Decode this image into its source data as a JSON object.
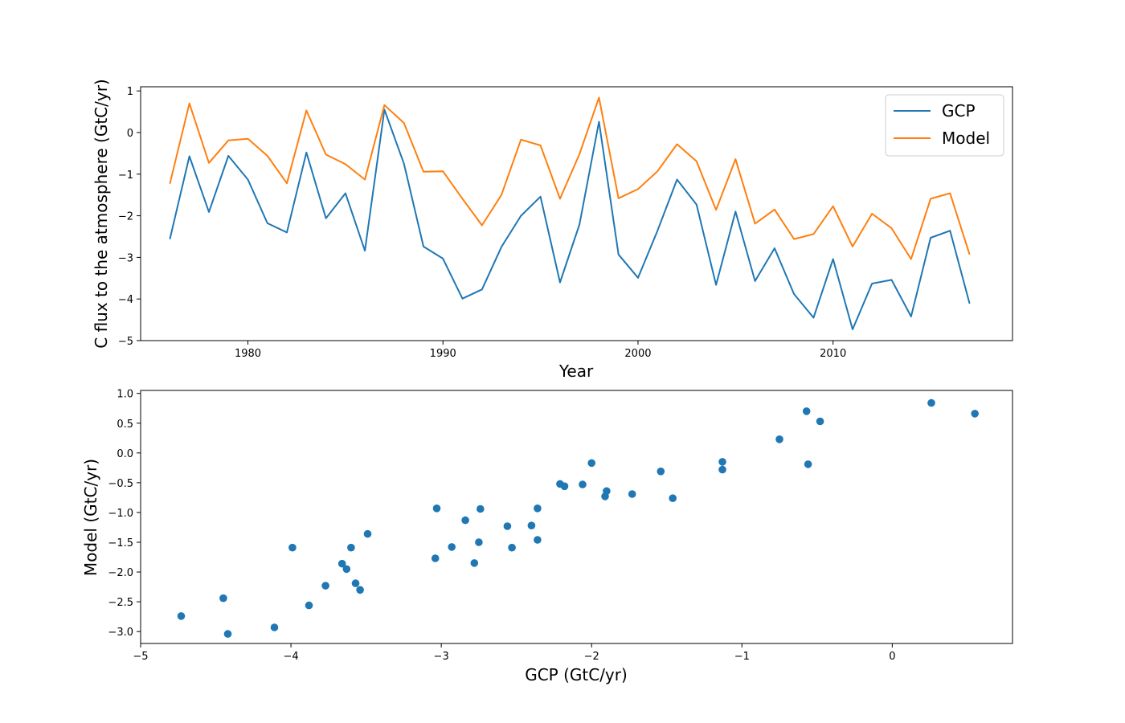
{
  "chart_data": [
    {
      "type": "line",
      "title": "",
      "xlabel": "Year",
      "ylabel": "C flux to the atmosphere (GtC/yr)",
      "xlim": [
        1974.5,
        2019.2
      ],
      "ylim": [
        -5.0,
        1.1
      ],
      "xticks": [
        1980,
        1990,
        2000,
        2010
      ],
      "xtick_labels": [
        "1980",
        "1990",
        "2000",
        "2010"
      ],
      "yticks": [
        1,
        0,
        -1,
        -2,
        -3,
        -4,
        -5
      ],
      "ytick_labels": [
        "1",
        "0",
        "−1",
        "−2",
        "−3",
        "−4",
        "−5"
      ],
      "grid": false,
      "legend": "upper right",
      "x": [
        1976,
        1977,
        1978,
        1979,
        1980,
        1981,
        1982,
        1983,
        1984,
        1985,
        1986,
        1987,
        1988,
        1989,
        1990,
        1991,
        1992,
        1993,
        1994,
        1995,
        1996,
        1997,
        1998,
        1999,
        2000,
        2001,
        2002,
        2003,
        2004,
        2005,
        2006,
        2007,
        2008,
        2009,
        2010,
        2011,
        2012,
        2013,
        2014,
        2015,
        2016,
        2017
      ],
      "series": [
        {
          "name": "GCP",
          "color": "#1f77b4",
          "values": [
            -2.56,
            -0.57,
            -1.91,
            -0.56,
            -1.13,
            -2.18,
            -2.4,
            -0.48,
            -2.06,
            -1.46,
            -2.84,
            0.55,
            -0.75,
            -2.74,
            -3.03,
            -3.99,
            -3.77,
            -2.75,
            -2.0,
            -1.54,
            -3.6,
            -2.21,
            0.26,
            -2.93,
            -3.49,
            -2.36,
            -1.13,
            -1.73,
            -3.66,
            -1.9,
            -3.57,
            -2.78,
            -3.88,
            -4.45,
            -3.04,
            -4.73,
            -3.63,
            -3.54,
            -4.42,
            -2.53,
            -2.36,
            -4.11
          ]
        },
        {
          "name": "Model",
          "color": "#ff7f0e",
          "values": [
            -1.23,
            0.7,
            -0.73,
            -0.19,
            -0.15,
            -0.56,
            -1.22,
            0.53,
            -0.53,
            -0.76,
            -1.13,
            0.66,
            0.23,
            -0.94,
            -0.93,
            -1.59,
            -2.23,
            -1.5,
            -0.17,
            -0.31,
            -1.59,
            -0.52,
            0.84,
            -1.58,
            -1.36,
            -0.93,
            -0.28,
            -0.69,
            -1.86,
            -0.64,
            -2.19,
            -1.85,
            -2.56,
            -2.44,
            -1.77,
            -2.74,
            -1.95,
            -2.3,
            -3.04,
            -1.59,
            -1.46,
            -2.93
          ]
        }
      ]
    },
    {
      "type": "scatter",
      "title": "",
      "xlabel": "GCP (GtC/yr)",
      "ylabel": "Model (GtC/yr)",
      "xlim": [
        -5.0,
        0.8
      ],
      "ylim": [
        -3.2,
        1.05
      ],
      "xticks": [
        -5,
        -4,
        -3,
        -2,
        -1,
        0
      ],
      "xtick_labels": [
        "−5",
        "−4",
        "−3",
        "−2",
        "−1",
        "0"
      ],
      "yticks": [
        1.0,
        0.5,
        0.0,
        -0.5,
        -1.0,
        -1.5,
        -2.0,
        -2.5,
        -3.0
      ],
      "ytick_labels": [
        "1.0",
        "0.5",
        "0.0",
        "−0.5",
        "−1.0",
        "−1.5",
        "−2.0",
        "−2.5",
        "−3.0"
      ],
      "grid": false,
      "color": "#1f77b4",
      "x": [
        -2.56,
        -0.57,
        -1.91,
        -0.56,
        -1.13,
        -2.18,
        -2.4,
        -0.48,
        -2.06,
        -1.46,
        -2.84,
        0.55,
        -0.75,
        -2.74,
        -3.03,
        -3.99,
        -3.77,
        -2.75,
        -2.0,
        -1.54,
        -3.6,
        -2.21,
        0.26,
        -2.93,
        -3.49,
        -2.36,
        -1.13,
        -1.73,
        -3.66,
        -1.9,
        -3.57,
        -2.78,
        -3.88,
        -4.45,
        -3.04,
        -4.73,
        -3.63,
        -3.54,
        -4.42,
        -2.53,
        -2.36,
        -4.11
      ],
      "y": [
        -1.23,
        0.7,
        -0.73,
        -0.19,
        -0.15,
        -0.56,
        -1.22,
        0.53,
        -0.53,
        -0.76,
        -1.13,
        0.66,
        0.23,
        -0.94,
        -0.93,
        -1.59,
        -2.23,
        -1.5,
        -0.17,
        -0.31,
        -1.59,
        -0.52,
        0.84,
        -1.58,
        -1.36,
        -0.93,
        -0.28,
        -0.69,
        -1.86,
        -0.64,
        -2.19,
        -1.85,
        -2.56,
        -2.44,
        -1.77,
        -2.74,
        -1.95,
        -2.3,
        -3.04,
        -1.59,
        -1.46,
        -2.93
      ]
    }
  ]
}
